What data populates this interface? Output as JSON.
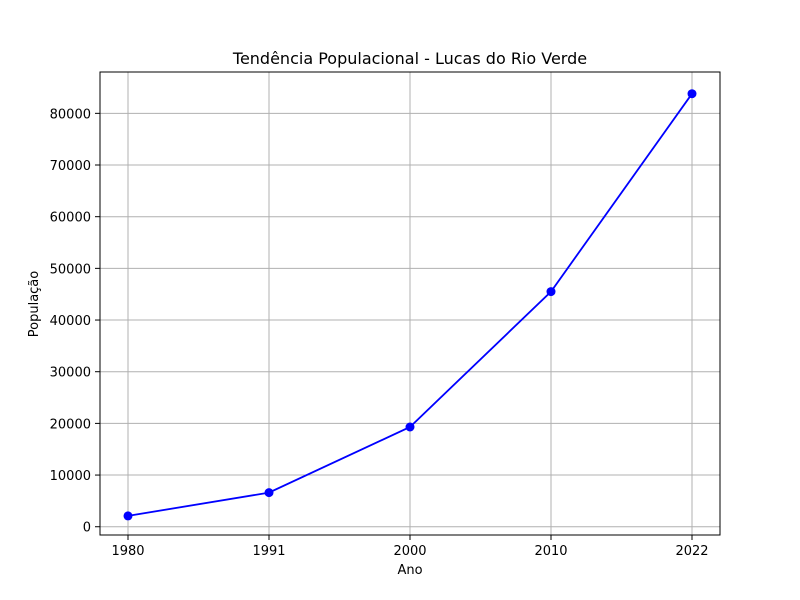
{
  "chart_data": {
    "type": "line",
    "title": "Tendência Populacional - Lucas do Rio Verde",
    "xlabel": "Ano",
    "ylabel": "População",
    "categories": [
      "1980",
      "1991",
      "2000",
      "2010",
      "2022"
    ],
    "series": [
      {
        "values": [
          2100,
          6600,
          19300,
          45500,
          83800
        ]
      }
    ],
    "ylim": [
      -1600,
      88000
    ],
    "yticks": [
      0,
      10000,
      20000,
      30000,
      40000,
      50000,
      60000,
      70000,
      80000
    ],
    "ytick_labels": [
      "0",
      "10000",
      "20000",
      "30000",
      "40000",
      "50000",
      "60000",
      "70000",
      "80000"
    ],
    "grid": true,
    "line_color": "#0000ff",
    "marker": "circle"
  }
}
